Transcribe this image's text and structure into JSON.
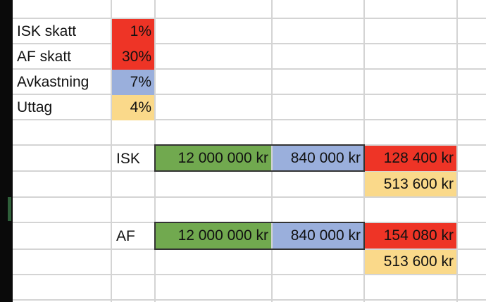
{
  "params": [
    {
      "label": "ISK skatt",
      "value": "1%"
    },
    {
      "label": "AF skatt",
      "value": "30%"
    },
    {
      "label": "Avkastning",
      "value": "7%"
    },
    {
      "label": "Uttag",
      "value": "4%"
    }
  ],
  "isk": {
    "label": "ISK",
    "capital": "12 000 000 kr",
    "return": "840 000 kr",
    "tax": "128 400 kr",
    "withdrawal": "513 600 kr"
  },
  "af": {
    "label": "AF",
    "capital": "12 000 000 kr",
    "return": "840 000 kr",
    "tax": "154 080 kr",
    "withdrawal": "513 600 kr"
  },
  "colors": {
    "tax": "#ee3426",
    "return": "#9aafdc",
    "withdrawal": "#fad98a",
    "capital": "#71a94f",
    "grid": "#d4d4d4"
  }
}
